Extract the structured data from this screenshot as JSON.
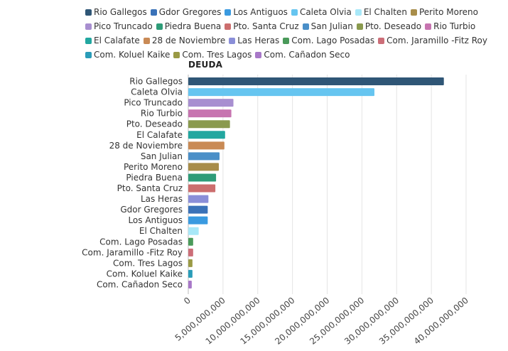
{
  "chart_data": {
    "type": "bar",
    "orientation": "horizontal",
    "title": "DEUDA",
    "xlabel": "",
    "ylabel": "",
    "xlim": [
      0,
      40000000000
    ],
    "grid": true,
    "legend_position": "top",
    "x_ticks": [
      "0",
      "5,000,000,000",
      "10,000,000,000",
      "15,000,000,000",
      "20,000,000,000",
      "25,000,000,000",
      "30,000,000,000",
      "35,000,000,000",
      "40,000,000,000"
    ],
    "x_tick_values": [
      0,
      5000000000,
      10000000000,
      15000000000,
      20000000000,
      25000000000,
      30000000000,
      35000000000,
      40000000000
    ],
    "legend": [
      {
        "label": "Rio Gallegos",
        "color": "#2f5676"
      },
      {
        "label": "Gdor Gregores",
        "color": "#3a72b8"
      },
      {
        "label": "Los Antiguos",
        "color": "#3a9ae0"
      },
      {
        "label": "Caleta Olvia",
        "color": "#66c5f0"
      },
      {
        "label": "El Chalten",
        "color": "#a8e8f8"
      },
      {
        "label": "Perito Moreno",
        "color": "#a88d4a"
      },
      {
        "label": "Pico Truncado",
        "color": "#a88fd0"
      },
      {
        "label": "Piedra Buena",
        "color": "#2e9c78"
      },
      {
        "label": "Pto. Santa Cruz",
        "color": "#cc6e6e"
      },
      {
        "label": "San Julian",
        "color": "#4a8fc8"
      },
      {
        "label": "Pto. Deseado",
        "color": "#8a9a4e"
      },
      {
        "label": "Rio Turbio",
        "color": "#c774b0"
      },
      {
        "label": "El Calafate",
        "color": "#22a7a0"
      },
      {
        "label": "28 de Noviembre",
        "color": "#c98a55"
      },
      {
        "label": "Las Heras",
        "color": "#8a8ed8"
      },
      {
        "label": "Com. Lago Posadas",
        "color": "#4a9a5a"
      },
      {
        "label": "Com. Jaramillo -Fitz Roy",
        "color": "#cc6e78"
      },
      {
        "label": "Com. Koluel Kaike",
        "color": "#2a9cb8"
      },
      {
        "label": "Com. Tres Lagos",
        "color": "#9a9a45"
      },
      {
        "label": "Com. Cañadon Seco",
        "color": "#a878c8"
      }
    ],
    "categories": [
      "Rio Gallegos",
      "Caleta Olvia",
      "Pico Truncado",
      "Rio Turbio",
      "Pto. Deseado",
      "El Calafate",
      "28 de Noviembre",
      "San Julian",
      "Perito Moreno",
      "Piedra Buena",
      "Pto. Santa Cruz",
      "Las Heras",
      "Gdor Gregores",
      "Los Antiguos",
      "El Chalten",
      "Com. Lago Posadas",
      "Com. Jaramillo -Fitz Roy",
      "Com. Tres Lagos",
      "Com. Koluel Kaike",
      "Com. Cañadon Seco"
    ],
    "values": [
      36800000000,
      26800000000,
      6500000000,
      6200000000,
      6000000000,
      5300000000,
      5200000000,
      4500000000,
      4400000000,
      4000000000,
      3900000000,
      2900000000,
      2800000000,
      2800000000,
      1500000000,
      700000000,
      700000000,
      600000000,
      600000000,
      500000000
    ],
    "colors": [
      "#2f5676",
      "#66c5f0",
      "#a88fd0",
      "#c774b0",
      "#8a9a4e",
      "#22a7a0",
      "#c98a55",
      "#4a8fc8",
      "#a88d4a",
      "#2e9c78",
      "#cc6e6e",
      "#8a8ed8",
      "#3a72b8",
      "#3a9ae0",
      "#a8e8f8",
      "#4a9a5a",
      "#cc6e78",
      "#9a9a45",
      "#2a9cb8",
      "#a878c8"
    ]
  }
}
